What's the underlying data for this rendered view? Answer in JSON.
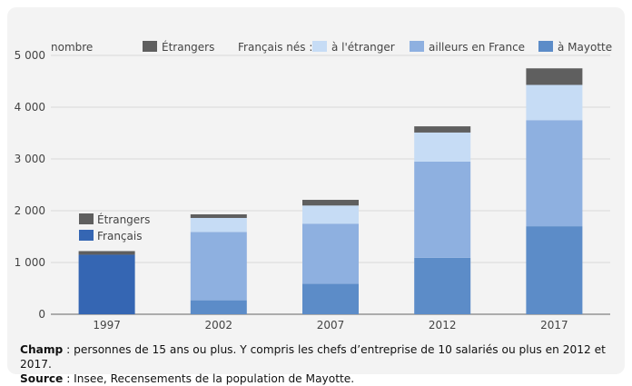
{
  "chart_data": {
    "type": "bar",
    "stacked": true,
    "ylabel": "nombre",
    "ylim": [
      0,
      5000
    ],
    "yticks": [
      0,
      1000,
      2000,
      3000,
      4000,
      5000
    ],
    "ytick_labels": [
      "0",
      "1 000",
      "2 000",
      "3 000",
      "4 000",
      "5 000"
    ],
    "categories": [
      "1997",
      "2002",
      "2007",
      "2012",
      "2017"
    ],
    "legend_group_label": "Français nés :",
    "legend": [
      {
        "name": "Étrangers",
        "color": "#5f5f5f"
      },
      {
        "name": "à l'étranger",
        "color": "#c6dcf5"
      },
      {
        "name": "ailleurs en France",
        "color": "#8eb0e0"
      },
      {
        "name": "à Mayotte",
        "color": "#5c8cc8"
      }
    ],
    "legend_1997": [
      {
        "name": "Étrangers",
        "color": "#5f5f5f"
      },
      {
        "name": "Français",
        "color": "#3566b3"
      }
    ],
    "series": [
      {
        "key": "francais_1997",
        "color": "#3566b3",
        "values": [
          1150,
          0,
          0,
          0,
          0
        ]
      },
      {
        "key": "mayotte",
        "color": "#5c8cc8",
        "values": [
          0,
          270,
          590,
          1090,
          1700
        ]
      },
      {
        "key": "france",
        "color": "#8eb0e0",
        "values": [
          0,
          1320,
          1160,
          1860,
          2050
        ]
      },
      {
        "key": "etranger",
        "color": "#c6dcf5",
        "values": [
          0,
          270,
          350,
          560,
          680
        ]
      },
      {
        "key": "etrangers",
        "color": "#5f5f5f",
        "values": [
          70,
          70,
          110,
          120,
          320
        ]
      }
    ]
  },
  "notes": {
    "champ_label": "Champ",
    "champ_text": " : personnes de 15 ans ou plus. Y compris les chefs d’entreprise de 10 salariés ou plus en 2012 et 2017.",
    "source_label": "Source",
    "source_text": " : Insee, Recensements de la population de Mayotte."
  }
}
